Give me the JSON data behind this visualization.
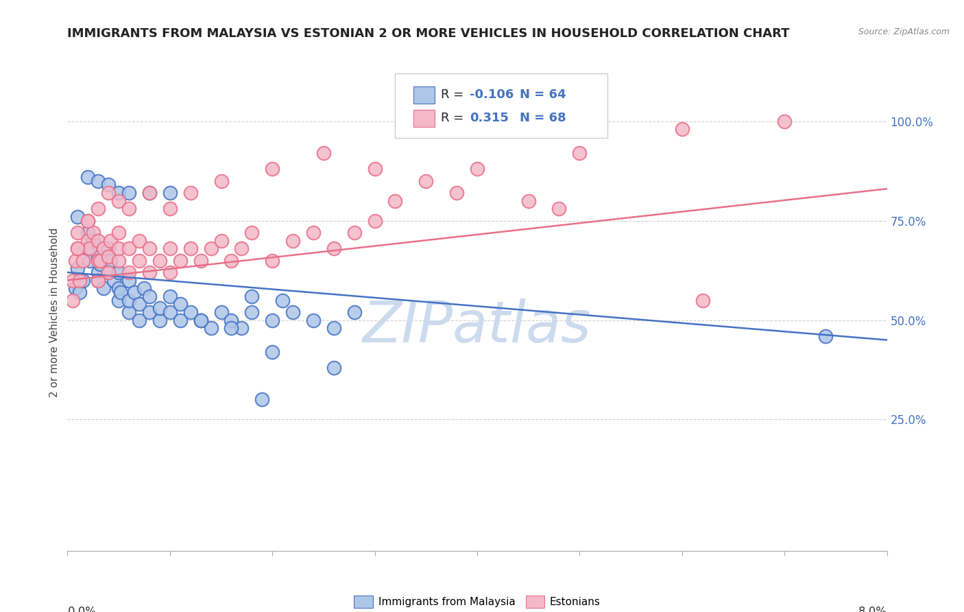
{
  "title": "IMMIGRANTS FROM MALAYSIA VS ESTONIAN 2 OR MORE VEHICLES IN HOUSEHOLD CORRELATION CHART",
  "source": "Source: ZipAtlas.com",
  "xmin": 0.0,
  "xmax": 0.08,
  "ymin": -0.08,
  "ymax": 1.12,
  "blue_R": -0.106,
  "blue_N": 64,
  "pink_R": 0.315,
  "pink_N": 68,
  "blue_color": "#aec6e8",
  "pink_color": "#f4b8c8",
  "blue_line_color": "#4472c4",
  "pink_line_color": "#e8708a",
  "legend_blue_label": "Immigrants from Malaysia",
  "legend_pink_label": "Estonians",
  "watermark": "ZIPatlas",
  "blue_scatter_x": [
    0.0008,
    0.001,
    0.0012,
    0.0015,
    0.002,
    0.002,
    0.0022,
    0.0025,
    0.003,
    0.003,
    0.003,
    0.0032,
    0.0035,
    0.004,
    0.004,
    0.0042,
    0.0045,
    0.005,
    0.005,
    0.005,
    0.0052,
    0.006,
    0.006,
    0.006,
    0.0065,
    0.007,
    0.007,
    0.0075,
    0.008,
    0.008,
    0.009,
    0.009,
    0.01,
    0.01,
    0.011,
    0.011,
    0.012,
    0.013,
    0.014,
    0.015,
    0.016,
    0.017,
    0.018,
    0.018,
    0.02,
    0.021,
    0.022,
    0.024,
    0.026,
    0.028,
    0.001,
    0.002,
    0.003,
    0.004,
    0.005,
    0.006,
    0.008,
    0.01,
    0.013,
    0.016,
    0.02,
    0.026,
    0.019,
    0.074
  ],
  "blue_scatter_y": [
    0.58,
    0.63,
    0.57,
    0.6,
    0.68,
    0.72,
    0.65,
    0.7,
    0.62,
    0.66,
    0.6,
    0.64,
    0.58,
    0.62,
    0.68,
    0.65,
    0.6,
    0.55,
    0.58,
    0.62,
    0.57,
    0.52,
    0.55,
    0.6,
    0.57,
    0.5,
    0.54,
    0.58,
    0.52,
    0.56,
    0.5,
    0.53,
    0.52,
    0.56,
    0.5,
    0.54,
    0.52,
    0.5,
    0.48,
    0.52,
    0.5,
    0.48,
    0.52,
    0.56,
    0.5,
    0.55,
    0.52,
    0.5,
    0.48,
    0.52,
    0.76,
    0.86,
    0.85,
    0.84,
    0.82,
    0.82,
    0.82,
    0.82,
    0.5,
    0.48,
    0.42,
    0.38,
    0.3,
    0.46
  ],
  "pink_scatter_x": [
    0.0005,
    0.0008,
    0.001,
    0.001,
    0.0012,
    0.0015,
    0.002,
    0.002,
    0.0022,
    0.0025,
    0.003,
    0.003,
    0.003,
    0.0032,
    0.0035,
    0.004,
    0.004,
    0.0042,
    0.005,
    0.005,
    0.005,
    0.006,
    0.006,
    0.007,
    0.007,
    0.008,
    0.008,
    0.009,
    0.01,
    0.01,
    0.011,
    0.012,
    0.013,
    0.014,
    0.015,
    0.016,
    0.017,
    0.018,
    0.02,
    0.022,
    0.024,
    0.026,
    0.028,
    0.03,
    0.0005,
    0.001,
    0.002,
    0.003,
    0.004,
    0.005,
    0.006,
    0.008,
    0.01,
    0.012,
    0.015,
    0.02,
    0.025,
    0.03,
    0.035,
    0.04,
    0.05,
    0.06,
    0.07,
    0.062,
    0.048,
    0.038,
    0.032,
    0.045
  ],
  "pink_scatter_y": [
    0.6,
    0.65,
    0.68,
    0.72,
    0.6,
    0.65,
    0.7,
    0.75,
    0.68,
    0.72,
    0.65,
    0.7,
    0.6,
    0.65,
    0.68,
    0.62,
    0.66,
    0.7,
    0.65,
    0.68,
    0.72,
    0.62,
    0.68,
    0.65,
    0.7,
    0.62,
    0.68,
    0.65,
    0.62,
    0.68,
    0.65,
    0.68,
    0.65,
    0.68,
    0.7,
    0.65,
    0.68,
    0.72,
    0.65,
    0.7,
    0.72,
    0.68,
    0.72,
    0.75,
    0.55,
    0.68,
    0.75,
    0.78,
    0.82,
    0.8,
    0.78,
    0.82,
    0.78,
    0.82,
    0.85,
    0.88,
    0.92,
    0.88,
    0.85,
    0.88,
    0.92,
    0.98,
    1.0,
    0.55,
    0.78,
    0.82,
    0.8,
    0.8
  ],
  "blue_line_x": [
    0.0,
    0.08
  ],
  "blue_line_y": [
    0.62,
    0.45
  ],
  "pink_line_x": [
    0.0,
    0.08
  ],
  "pink_line_y": [
    0.6,
    0.83
  ],
  "background_color": "#ffffff",
  "grid_color": "#d0d0d0",
  "title_fontsize": 13,
  "watermark_color": "#ccdaee",
  "watermark_fontsize": 60,
  "right_tick_color": "#4472c4",
  "scatter_size": 200,
  "scatter_linewidth": 1.5
}
